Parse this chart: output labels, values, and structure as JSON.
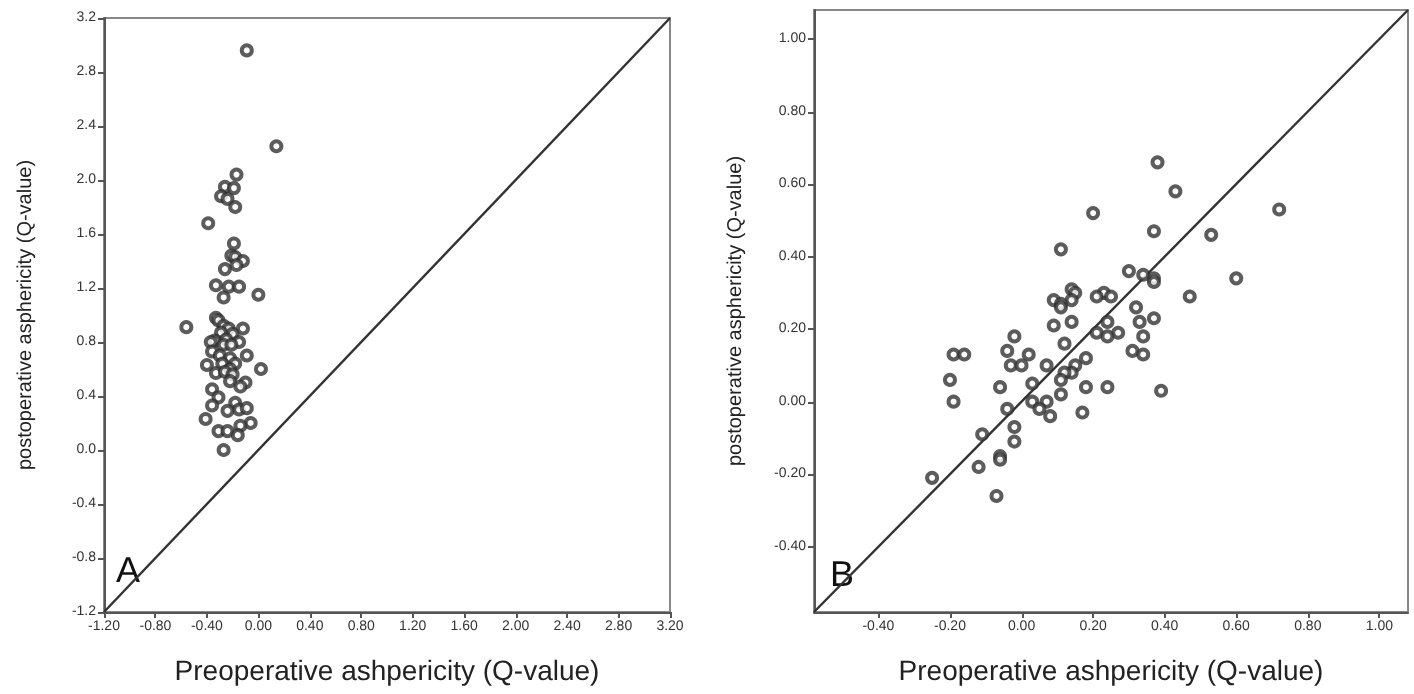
{
  "chart_data": [
    {
      "type": "scatter",
      "xlabel": "Preoperative ashpericity (Q-value)",
      "ylabel": "postoperative asphericity (Q-value)",
      "annotations": [
        "A"
      ],
      "marker": "circle",
      "grid": false,
      "xlim": [
        -1.2,
        3.2
      ],
      "ylim": [
        -1.2,
        3.2
      ],
      "xticks": [
        {
          "value": -1.2,
          "label": "-1.20"
        },
        {
          "value": -0.8,
          "label": "-0.80"
        },
        {
          "value": -0.4,
          "label": "-0.40"
        },
        {
          "value": 0,
          "label": "0.00"
        },
        {
          "value": 0.4,
          "label": "0.40"
        },
        {
          "value": 0.8,
          "label": "0.80"
        },
        {
          "value": 1.2,
          "label": "1.20"
        },
        {
          "value": 1.6,
          "label": "1.60"
        },
        {
          "value": 2.0,
          "label": "2.00"
        },
        {
          "value": 2.4,
          "label": "2.40"
        },
        {
          "value": 2.8,
          "label": "2.80"
        },
        {
          "value": 3.2,
          "label": "3.20"
        }
      ],
      "yticks": [
        {
          "value": -1.2,
          "label": "-1.2"
        },
        {
          "value": -0.8,
          "label": "-0.8"
        },
        {
          "value": -0.4,
          "label": "-0.4"
        },
        {
          "value": 0,
          "label": "0.0"
        },
        {
          "value": 0.4,
          "label": "0.4"
        },
        {
          "value": 0.8,
          "label": "0.8"
        },
        {
          "value": 1.2,
          "label": "1.2"
        },
        {
          "value": 1.6,
          "label": "1.6"
        },
        {
          "value": 2.0,
          "label": "2.0"
        },
        {
          "value": 2.4,
          "label": "2.4"
        },
        {
          "value": 2.8,
          "label": "2.8"
        },
        {
          "value": 3.2,
          "label": "3.2"
        }
      ],
      "series": [
        {
          "color": "#333333",
          "x": [
            -0.09,
            0.14,
            -0.17,
            -0.26,
            -0.19,
            -0.29,
            -0.24,
            -0.18,
            -0.39,
            -0.19,
            -0.21,
            -0.18,
            -0.12,
            -0.17,
            -0.26,
            -0.33,
            -0.23,
            -0.15,
            0.0,
            -0.27,
            -0.56,
            -0.33,
            -0.31,
            -0.27,
            -0.23,
            -0.12,
            -0.29,
            -0.2,
            -0.34,
            -0.25,
            -0.15,
            -0.37,
            -0.27,
            -0.21,
            -0.09,
            -0.36,
            -0.3,
            -0.22,
            -0.28,
            -0.4,
            -0.18,
            -0.22,
            0.02,
            -0.33,
            -0.26,
            -0.2,
            -0.1,
            -0.22,
            -0.14,
            -0.36,
            -0.31,
            -0.36,
            -0.18,
            -0.15,
            -0.24,
            -0.09,
            -0.41,
            -0.06,
            -0.14,
            -0.31,
            -0.24,
            -0.16,
            -0.27
          ],
          "values": [
            2.96,
            2.25,
            2.04,
            1.95,
            1.94,
            1.88,
            1.86,
            1.8,
            1.68,
            1.53,
            1.44,
            1.43,
            1.4,
            1.37,
            1.34,
            1.22,
            1.21,
            1.21,
            1.15,
            1.13,
            0.91,
            0.98,
            0.96,
            0.92,
            0.9,
            0.9,
            0.87,
            0.86,
            0.81,
            0.82,
            0.8,
            0.8,
            0.78,
            0.78,
            0.7,
            0.73,
            0.7,
            0.68,
            0.64,
            0.63,
            0.64,
            0.6,
            0.6,
            0.57,
            0.58,
            0.56,
            0.5,
            0.51,
            0.47,
            0.45,
            0.39,
            0.33,
            0.35,
            0.3,
            0.29,
            0.31,
            0.23,
            0.2,
            0.18,
            0.14,
            0.14,
            0.11,
            0.0
          ]
        },
        {
          "type": "line",
          "marker": "none",
          "color": "#333333",
          "x": [
            -1.2,
            3.2
          ],
          "values": [
            -1.2,
            3.2
          ]
        }
      ]
    },
    {
      "type": "scatter",
      "xlabel": "Preoperative ashpericity (Q-value)",
      "ylabel": "postoperative asphericity (Q-value)",
      "annotations": [
        "B"
      ],
      "marker": "circle",
      "grid": false,
      "xlim": [
        -0.58,
        1.08
      ],
      "ylim": [
        -0.58,
        1.08
      ],
      "xticks": [
        {
          "value": -0.4,
          "label": "-0.40"
        },
        {
          "value": -0.2,
          "label": "-0.20"
        },
        {
          "value": 0,
          "label": "0.00"
        },
        {
          "value": 0.2,
          "label": "0.20"
        },
        {
          "value": 0.4,
          "label": "0.40"
        },
        {
          "value": 0.6,
          "label": "0.60"
        },
        {
          "value": 0.8,
          "label": "0.80"
        },
        {
          "value": 1.0,
          "label": "1.00"
        }
      ],
      "yticks": [
        {
          "value": -0.4,
          "label": "-0.40"
        },
        {
          "value": -0.2,
          "label": "-0.20"
        },
        {
          "value": 0,
          "label": "0.00"
        },
        {
          "value": 0.2,
          "label": "0.20"
        },
        {
          "value": 0.4,
          "label": "0.40"
        },
        {
          "value": 0.6,
          "label": "0.60"
        },
        {
          "value": 0.8,
          "label": "0.80"
        },
        {
          "value": 1.0,
          "label": "1.00"
        }
      ],
      "series": [
        {
          "color": "#333333",
          "x": [
            0.38,
            0.43,
            0.72,
            0.2,
            0.37,
            0.53,
            0.11,
            0.3,
            0.34,
            0.37,
            0.37,
            0.6,
            0.14,
            0.15,
            0.23,
            0.25,
            0.21,
            0.47,
            0.09,
            0.14,
            0.11,
            0.11,
            0.32,
            0.33,
            0.37,
            0.14,
            0.24,
            0.09,
            0.21,
            0.27,
            0.24,
            0.34,
            -0.02,
            0.12,
            0.31,
            -0.04,
            0.34,
            0.02,
            -0.19,
            -0.16,
            -0.03,
            0.0,
            0.07,
            0.15,
            0.18,
            0.14,
            0.12,
            -0.2,
            0.11,
            0.03,
            -0.06,
            0.18,
            0.24,
            0.39,
            -0.19,
            0.03,
            0.07,
            0.11,
            -0.04,
            0.05,
            0.17,
            0.08,
            -0.02,
            -0.11,
            -0.02,
            -0.06,
            -0.06,
            -0.12,
            -0.25,
            -0.07
          ],
          "values": [
            0.66,
            0.58,
            0.53,
            0.52,
            0.47,
            0.46,
            0.42,
            0.36,
            0.35,
            0.34,
            0.33,
            0.34,
            0.31,
            0.3,
            0.3,
            0.29,
            0.29,
            0.29,
            0.28,
            0.28,
            0.27,
            0.26,
            0.26,
            0.22,
            0.23,
            0.22,
            0.22,
            0.21,
            0.19,
            0.19,
            0.18,
            0.18,
            0.18,
            0.16,
            0.14,
            0.14,
            0.13,
            0.13,
            0.13,
            0.13,
            0.1,
            0.1,
            0.1,
            0.1,
            0.12,
            0.08,
            0.08,
            0.06,
            0.06,
            0.05,
            0.04,
            0.04,
            0.04,
            0.03,
            0.0,
            0.0,
            0.0,
            0.02,
            -0.02,
            -0.02,
            -0.03,
            -0.04,
            -0.07,
            -0.09,
            -0.11,
            -0.15,
            -0.16,
            -0.18,
            -0.21,
            -0.26
          ]
        },
        {
          "type": "line",
          "marker": "none",
          "color": "#333333",
          "x": [
            -0.58,
            1.08
          ],
          "values": [
            -0.58,
            1.08
          ]
        }
      ]
    }
  ]
}
